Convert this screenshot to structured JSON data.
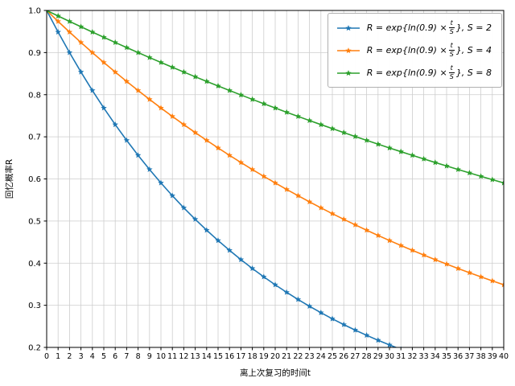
{
  "chart_data": {
    "type": "line",
    "title": "",
    "xlabel": "离上次复习的时间t",
    "ylabel": "回忆概率R",
    "xlim": [
      0,
      40
    ],
    "ylim": [
      0.2,
      1.0
    ],
    "x_ticks": [
      0,
      1,
      2,
      3,
      4,
      5,
      6,
      7,
      8,
      9,
      10,
      11,
      12,
      13,
      14,
      15,
      16,
      17,
      18,
      19,
      20,
      21,
      22,
      23,
      24,
      25,
      26,
      27,
      28,
      29,
      30,
      31,
      32,
      33,
      34,
      35,
      36,
      37,
      38,
      39,
      40
    ],
    "y_ticks": [
      0.2,
      0.3,
      0.4,
      0.5,
      0.6,
      0.7,
      0.8,
      0.9,
      1.0
    ],
    "grid": true,
    "legend_position": "upper right",
    "marker": "star",
    "x": [
      0,
      1,
      2,
      3,
      4,
      5,
      6,
      7,
      8,
      9,
      10,
      11,
      12,
      13,
      14,
      15,
      16,
      17,
      18,
      19,
      20,
      21,
      22,
      23,
      24,
      25,
      26,
      27,
      28,
      29,
      30,
      31,
      32,
      33,
      34,
      35,
      36,
      37,
      38,
      39,
      40
    ],
    "series": [
      {
        "name": "R = exp{ln(0.9) × t/S}, S = 2",
        "label_parts": {
          "prefix": "R = exp{ln(0.9) ×",
          "frac_num": "t",
          "frac_den": "S",
          "suffix": "}, S = 2"
        },
        "S": 2,
        "color": "#1f77b4",
        "values": [
          1.0,
          0.9487,
          0.9,
          0.8538,
          0.81,
          0.7684,
          0.729,
          0.6916,
          0.6561,
          0.6224,
          0.5905,
          0.5602,
          0.5314,
          0.5042,
          0.4783,
          0.4538,
          0.4305,
          0.4084,
          0.3874,
          0.3675,
          0.3487,
          0.3308,
          0.3138,
          0.2977,
          0.2824,
          0.2679,
          0.2542,
          0.2411,
          0.2288,
          0.217,
          0.2059,
          0.1953
        ]
      },
      {
        "name": "R = exp{ln(0.9) × t/S}, S = 4",
        "label_parts": {
          "prefix": "R = exp{ln(0.9) ×",
          "frac_num": "t",
          "frac_den": "S",
          "suffix": "}, S = 4"
        },
        "S": 4,
        "color": "#ff7f0e",
        "values": [
          1.0,
          0.974,
          0.9487,
          0.924,
          0.9,
          0.8766,
          0.8538,
          0.8316,
          0.81,
          0.7889,
          0.7684,
          0.7485,
          0.729,
          0.7101,
          0.6916,
          0.6736,
          0.6561,
          0.639,
          0.6224,
          0.6062,
          0.5905,
          0.5751,
          0.5602,
          0.5456,
          0.5314,
          0.5176,
          0.5042,
          0.4911,
          0.4783,
          0.4659,
          0.4538,
          0.442,
          0.4305,
          0.4193,
          0.4084,
          0.3978,
          0.3874,
          0.3774,
          0.3675,
          0.358,
          0.3487
        ]
      },
      {
        "name": "R = exp{ln(0.9) × t/S}, S = 8",
        "label_parts": {
          "prefix": "R = exp{ln(0.9) ×",
          "frac_num": "t",
          "frac_den": "S",
          "suffix": "}, S = 8"
        },
        "S": 8,
        "color": "#2ca02c",
        "values": [
          1.0,
          0.9869,
          0.974,
          0.9613,
          0.9487,
          0.9363,
          0.924,
          0.9119,
          0.9,
          0.8882,
          0.8766,
          0.8651,
          0.8538,
          0.8426,
          0.8316,
          0.8207,
          0.81,
          0.7994,
          0.7889,
          0.7786,
          0.7684,
          0.7583,
          0.7485,
          0.7387,
          0.729,
          0.7195,
          0.7101,
          0.7008,
          0.6916,
          0.6825,
          0.6736,
          0.6648,
          0.6561,
          0.6475,
          0.639,
          0.6307,
          0.6224,
          0.6143,
          0.6062,
          0.5983,
          0.5905
        ]
      }
    ]
  }
}
